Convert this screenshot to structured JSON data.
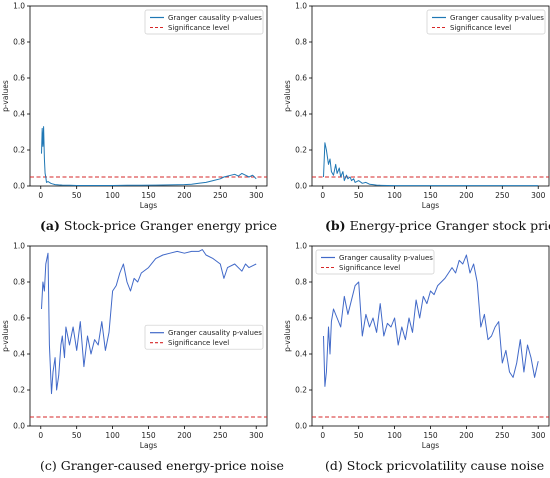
{
  "chart_data": [
    {
      "type": "line",
      "caption": {
        "tag": "(a)",
        "text": "Stock-price Granger energy price"
      },
      "xlabel": "Lags",
      "ylabel": "p-values",
      "xlim": [
        -15,
        315
      ],
      "ylim": [
        0,
        1.0
      ],
      "xticks": [
        "0",
        "50",
        "100",
        "150",
        "200",
        "250",
        "300"
      ],
      "yticks": [
        "0.0",
        "0.2",
        "0.4",
        "0.6",
        "0.8",
        "1.0"
      ],
      "legend_position": "top-right",
      "significance_level": 0.05,
      "series": [
        {
          "name": "Granger causality p-values",
          "color": "#1f77b4",
          "x": [
            1,
            2,
            3,
            4,
            5,
            6,
            7,
            8,
            10,
            12,
            14,
            16,
            20,
            25,
            30,
            40,
            50,
            60,
            80,
            100,
            120,
            140,
            160,
            180,
            200,
            210,
            220,
            230,
            240,
            250,
            255,
            260,
            265,
            270,
            275,
            280,
            285,
            290,
            295,
            300
          ],
          "y": [
            0.18,
            0.32,
            0.22,
            0.33,
            0.15,
            0.07,
            0.05,
            0.02,
            0.025,
            0.02,
            0.015,
            0.012,
            0.008,
            0.006,
            0.005,
            0.004,
            0.003,
            0.003,
            0.003,
            0.003,
            0.004,
            0.004,
            0.005,
            0.006,
            0.008,
            0.01,
            0.015,
            0.02,
            0.03,
            0.04,
            0.05,
            0.055,
            0.06,
            0.065,
            0.055,
            0.07,
            0.06,
            0.05,
            0.06,
            0.04
          ]
        }
      ],
      "reference_line": {
        "name": "Significance level",
        "color": "#d62728"
      }
    },
    {
      "type": "line",
      "caption": {
        "tag": "(b)",
        "text": "Energy-price Granger stock price"
      },
      "xlabel": "Lags",
      "ylabel": "p-values",
      "xlim": [
        -15,
        315
      ],
      "ylim": [
        0,
        1.0
      ],
      "xticks": [
        "0",
        "50",
        "100",
        "150",
        "200",
        "250",
        "300"
      ],
      "yticks": [
        "0.0",
        "0.2",
        "0.4",
        "0.6",
        "0.8",
        "1.0"
      ],
      "legend_position": "top-right",
      "significance_level": 0.05,
      "series": [
        {
          "name": "Granger causality p-values",
          "color": "#1f77b4",
          "x": [
            1,
            3,
            5,
            8,
            10,
            12,
            15,
            18,
            20,
            23,
            25,
            28,
            30,
            33,
            35,
            38,
            40,
            43,
            45,
            50,
            55,
            60,
            65,
            70,
            75,
            80,
            90,
            100,
            150,
            200,
            250,
            300
          ],
          "y": [
            0.05,
            0.24,
            0.2,
            0.12,
            0.15,
            0.08,
            0.06,
            0.12,
            0.07,
            0.1,
            0.05,
            0.08,
            0.03,
            0.06,
            0.04,
            0.05,
            0.03,
            0.04,
            0.02,
            0.03,
            0.015,
            0.02,
            0.01,
            0.008,
            0.005,
            0.004,
            0.003,
            0.002,
            0.002,
            0.002,
            0.002,
            0.002
          ]
        }
      ],
      "reference_line": {
        "name": "Significance level",
        "color": "#d62728"
      }
    },
    {
      "type": "line",
      "caption": {
        "tag": "(c)",
        "text": "Granger-caused energy-price noise"
      },
      "xlabel": "Lags",
      "ylabel": "p-values",
      "xlim": [
        -15,
        315
      ],
      "ylim": [
        0,
        1.0
      ],
      "xticks": [
        "0",
        "50",
        "100",
        "150",
        "200",
        "250",
        "300"
      ],
      "yticks": [
        "0.0",
        "0.2",
        "0.4",
        "0.6",
        "0.8",
        "1.0"
      ],
      "legend_position": "center-right",
      "significance_level": 0.05,
      "series": [
        {
          "name": "Granger causality p-values",
          "color": "#4169c8",
          "x": [
            1,
            3,
            5,
            7,
            10,
            12,
            15,
            17,
            20,
            22,
            25,
            28,
            30,
            33,
            35,
            40,
            45,
            50,
            55,
            60,
            65,
            70,
            75,
            80,
            85,
            90,
            95,
            100,
            105,
            110,
            115,
            120,
            125,
            130,
            135,
            140,
            150,
            160,
            170,
            180,
            190,
            200,
            210,
            220,
            225,
            230,
            240,
            250,
            255,
            260,
            270,
            280,
            285,
            290,
            300
          ],
          "y": [
            0.65,
            0.8,
            0.75,
            0.9,
            0.96,
            0.45,
            0.18,
            0.3,
            0.38,
            0.2,
            0.28,
            0.45,
            0.5,
            0.38,
            0.55,
            0.45,
            0.55,
            0.42,
            0.58,
            0.33,
            0.5,
            0.4,
            0.48,
            0.45,
            0.58,
            0.42,
            0.52,
            0.75,
            0.78,
            0.85,
            0.9,
            0.8,
            0.75,
            0.82,
            0.8,
            0.85,
            0.88,
            0.93,
            0.95,
            0.96,
            0.97,
            0.96,
            0.97,
            0.97,
            0.98,
            0.95,
            0.93,
            0.9,
            0.82,
            0.88,
            0.9,
            0.86,
            0.9,
            0.88,
            0.9
          ]
        }
      ],
      "reference_line": {
        "name": "Significance level",
        "color": "#d62728"
      }
    },
    {
      "type": "line",
      "caption": {
        "tag": "(d)",
        "text": "Stock pricvolatility cause noise"
      },
      "xlabel": "Lags",
      "ylabel": "p-values",
      "xlim": [
        -15,
        315
      ],
      "ylim": [
        0,
        1.0
      ],
      "xticks": [
        "0",
        "50",
        "100",
        "150",
        "200",
        "250",
        "300"
      ],
      "yticks": [
        "0.0",
        "0.2",
        "0.4",
        "0.6",
        "0.8",
        "1.0"
      ],
      "legend_position": "top-left",
      "significance_level": 0.05,
      "series": [
        {
          "name": "Granger causality p-values",
          "color": "#4169c8",
          "x": [
            1,
            3,
            5,
            8,
            10,
            12,
            15,
            20,
            25,
            30,
            35,
            40,
            45,
            50,
            55,
            60,
            65,
            70,
            75,
            80,
            85,
            90,
            95,
            100,
            105,
            110,
            115,
            120,
            125,
            130,
            135,
            140,
            145,
            150,
            155,
            160,
            165,
            170,
            175,
            180,
            185,
            190,
            195,
            200,
            205,
            210,
            215,
            220,
            225,
            230,
            235,
            240,
            245,
            250,
            255,
            260,
            265,
            270,
            275,
            280,
            285,
            290,
            295,
            300
          ],
          "y": [
            0.5,
            0.22,
            0.3,
            0.55,
            0.4,
            0.58,
            0.65,
            0.6,
            0.55,
            0.72,
            0.62,
            0.7,
            0.78,
            0.8,
            0.5,
            0.62,
            0.55,
            0.6,
            0.52,
            0.68,
            0.5,
            0.57,
            0.55,
            0.6,
            0.45,
            0.55,
            0.48,
            0.6,
            0.52,
            0.7,
            0.6,
            0.72,
            0.68,
            0.75,
            0.73,
            0.78,
            0.8,
            0.82,
            0.85,
            0.88,
            0.85,
            0.92,
            0.9,
            0.95,
            0.85,
            0.9,
            0.8,
            0.55,
            0.62,
            0.48,
            0.5,
            0.55,
            0.58,
            0.35,
            0.42,
            0.3,
            0.27,
            0.35,
            0.48,
            0.3,
            0.45,
            0.38,
            0.27,
            0.36
          ]
        }
      ],
      "reference_line": {
        "name": "Significance level",
        "color": "#d62728"
      }
    }
  ]
}
